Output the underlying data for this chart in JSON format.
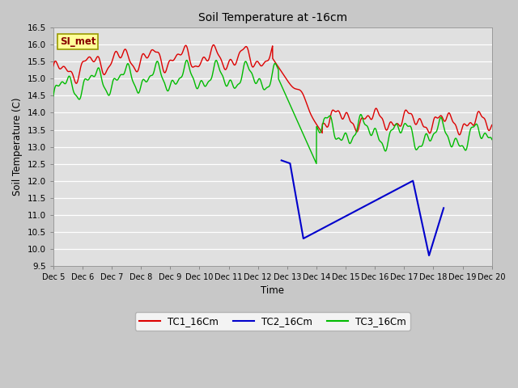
{
  "title": "Soil Temperature at -16cm",
  "xlabel": "Time",
  "ylabel": "Soil Temperature (C)",
  "ylim": [
    9.5,
    16.5
  ],
  "xlim": [
    0,
    15
  ],
  "xtick_labels": [
    "Dec 5",
    "Dec 6",
    "Dec 7",
    "Dec 8",
    "Dec 9",
    "Dec 10",
    "Dec 11",
    "Dec 12",
    "Dec 13",
    "Dec 14",
    "Dec 15",
    "Dec 16",
    "Dec 17",
    "Dec 18",
    "Dec 19",
    "Dec 20"
  ],
  "ytick_values": [
    9.5,
    10.0,
    10.5,
    11.0,
    11.5,
    12.0,
    12.5,
    13.0,
    13.5,
    14.0,
    14.5,
    15.0,
    15.5,
    16.0,
    16.5
  ],
  "tc1_color": "#dd0000",
  "tc2_color": "#0000cc",
  "tc3_color": "#00bb00",
  "fig_facecolor": "#c8c8c8",
  "ax_facecolor": "#e0e0e0",
  "grid_color": "#ffffff",
  "annotation_text": "SI_met",
  "annotation_bg": "#ffff99",
  "annotation_border": "#999900",
  "legend_labels": [
    "TC1_16Cm",
    "TC2_16Cm",
    "TC3_16Cm"
  ]
}
